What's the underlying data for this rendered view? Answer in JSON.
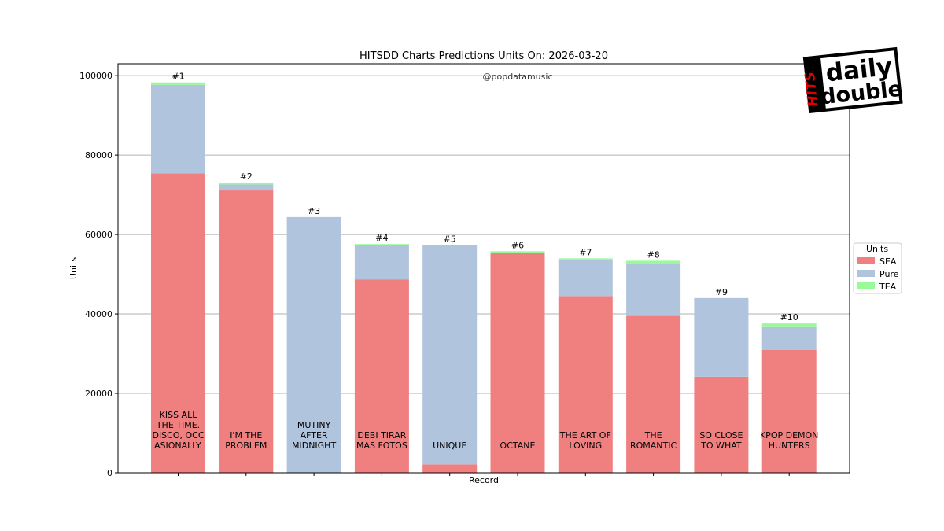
{
  "chart_data": {
    "type": "bar",
    "stacked": true,
    "title": "HITSDD Charts Predictions Units On: 2026-03-20",
    "watermark": "@popdatamusic",
    "xlabel": "Record",
    "ylabel": "Units",
    "ylim": [
      0,
      103000
    ],
    "yticks": [
      "0",
      "20000",
      "40000",
      "60000",
      "80000",
      "100000"
    ],
    "ytick_values": [
      0,
      20000,
      40000,
      60000,
      80000,
      100000
    ],
    "grid": "horizontal",
    "legend": {
      "title": "Units",
      "position": "right"
    },
    "categories": [
      [
        "KISS ALL",
        "THE TIME.",
        "DISCO, OCC",
        "ASIONALLY."
      ],
      [
        "I'M THE",
        "PROBLEM"
      ],
      [
        "MUTINY",
        "AFTER",
        "MIDNIGHT"
      ],
      [
        "DEBI TIRAR",
        "MAS FOTOS"
      ],
      [
        "UNIQUE"
      ],
      [
        "OCTANE"
      ],
      [
        "THE ART OF",
        "LOVING"
      ],
      [
        "THE",
        "ROMANTIC"
      ],
      [
        "SO CLOSE",
        "TO WHAT"
      ],
      [
        "KPOP DEMON",
        "HUNTERS"
      ]
    ],
    "ranks": [
      "#1",
      "#2",
      "#3",
      "#4",
      "#5",
      "#6",
      "#7",
      "#8",
      "#9",
      "#10"
    ],
    "series": [
      {
        "name": "SEA",
        "color": "#f08080",
        "values": [
          75400,
          71100,
          0,
          48700,
          2100,
          55300,
          44500,
          39500,
          24200,
          30900
        ]
      },
      {
        "name": "Pure",
        "color": "#b0c4de",
        "values": [
          22300,
          1500,
          64400,
          8600,
          55200,
          0,
          9000,
          13000,
          19800,
          5800
        ]
      },
      {
        "name": "TEA",
        "color": "#98fb98",
        "values": [
          600,
          500,
          0,
          300,
          0,
          500,
          500,
          900,
          0,
          900
        ]
      }
    ]
  },
  "logo": {
    "script_text": "HITS",
    "line1": "daily",
    "line2": "double"
  }
}
